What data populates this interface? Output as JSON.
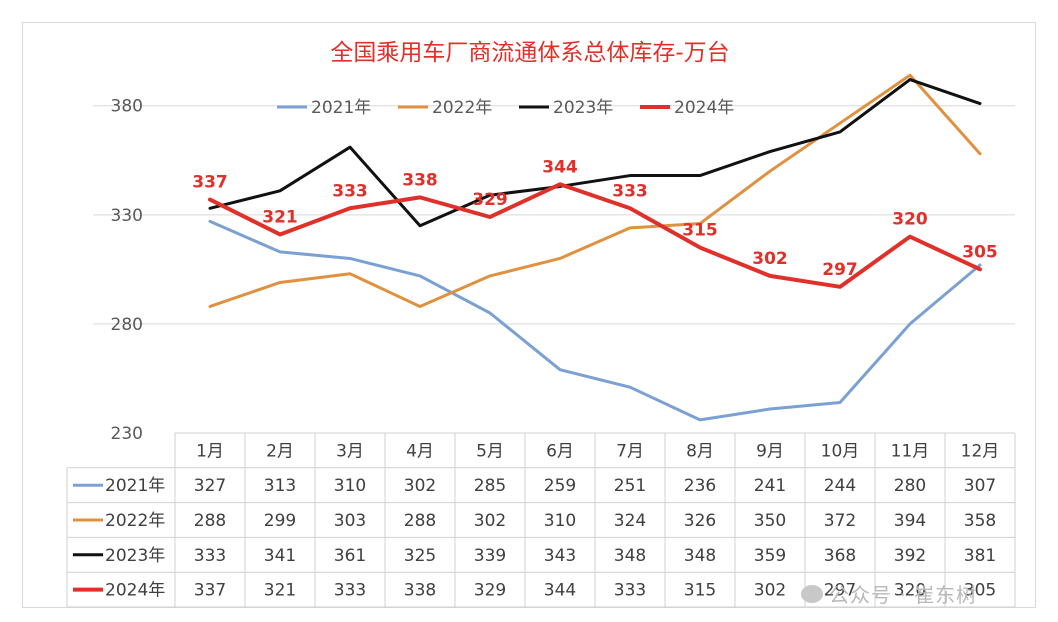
{
  "chart_data": {
    "type": "line",
    "title": "全国乘用车厂商流通体系总体库存-万台",
    "categories": [
      "1月",
      "2月",
      "3月",
      "4月",
      "5月",
      "6月",
      "7月",
      "8月",
      "9月",
      "10月",
      "11月",
      "12月"
    ],
    "y_ticks": [
      230,
      280,
      330,
      380
    ],
    "ylim": [
      230,
      395
    ],
    "grid": "horizontal",
    "legend_position": "top",
    "series": [
      {
        "name": "2021年",
        "color": "#7aa0d4",
        "values": [
          327,
          313,
          310,
          302,
          285,
          259,
          251,
          236,
          241,
          244,
          280,
          307
        ]
      },
      {
        "name": "2022年",
        "color": "#e0913f",
        "values": [
          288,
          299,
          303,
          288,
          302,
          310,
          324,
          326,
          350,
          372,
          394,
          358
        ]
      },
      {
        "name": "2023年",
        "color": "#111111",
        "values": [
          333,
          341,
          361,
          325,
          339,
          343,
          348,
          348,
          359,
          368,
          392,
          381
        ]
      },
      {
        "name": "2024年",
        "color": "#e0302a",
        "values": [
          337,
          321,
          333,
          338,
          329,
          344,
          333,
          315,
          302,
          297,
          320,
          305
        ],
        "labeled": true
      }
    ]
  },
  "watermark": {
    "text": "公众号 · 崔东树",
    "icon": "wechat-icon"
  }
}
